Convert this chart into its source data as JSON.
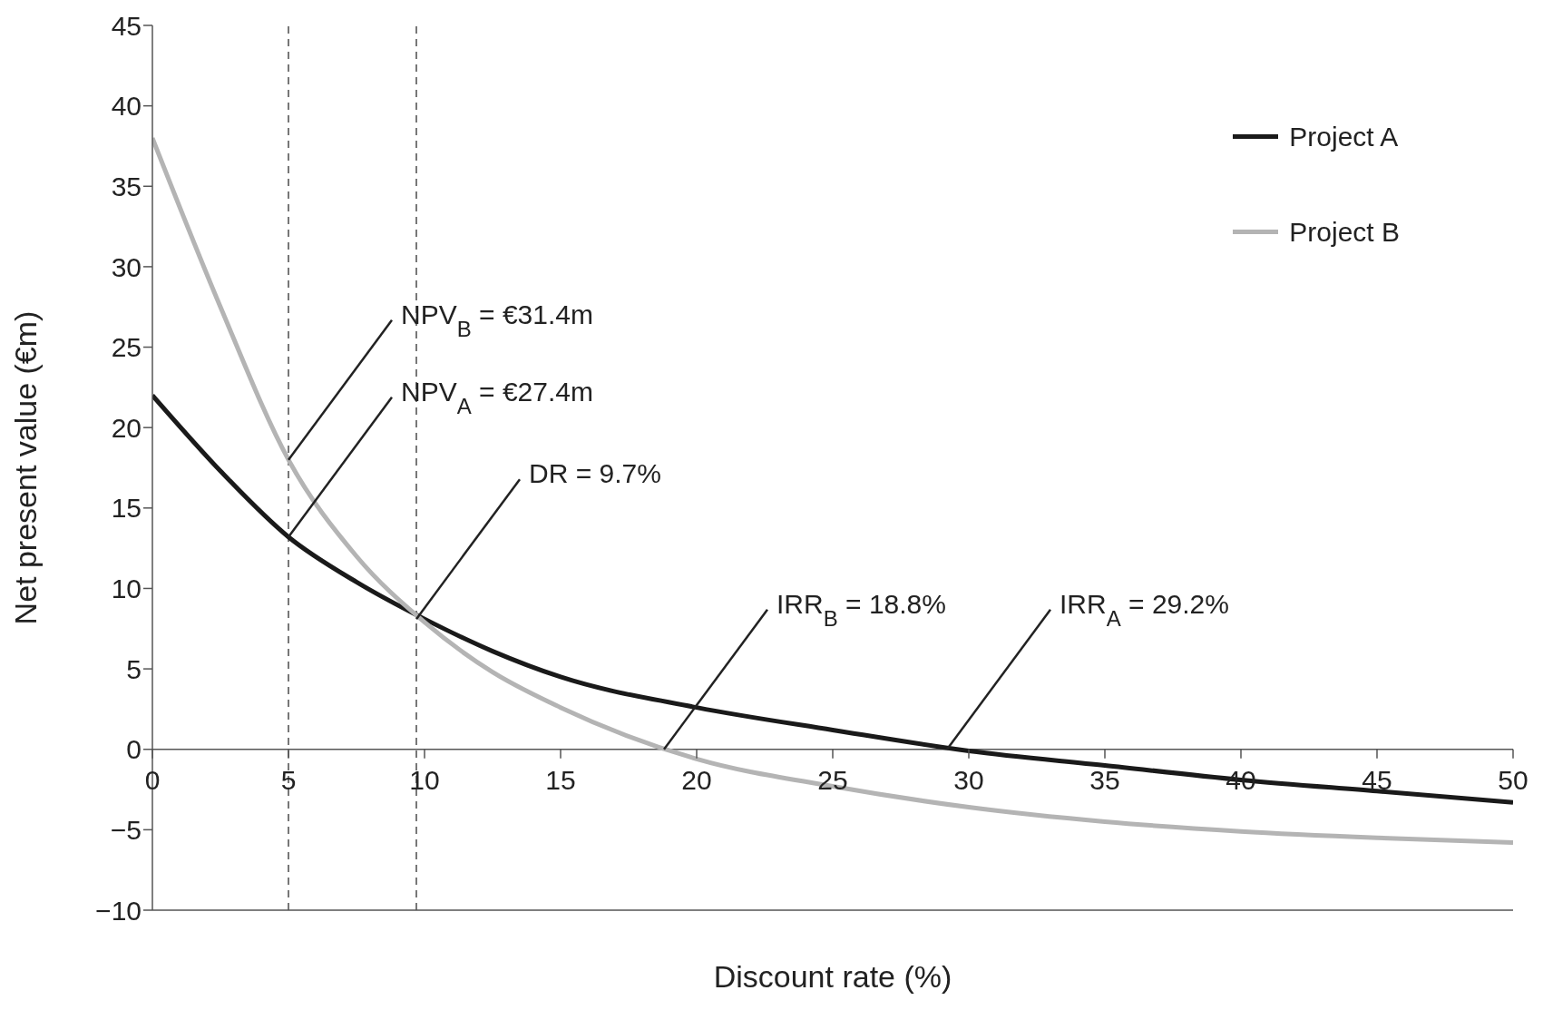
{
  "chart_data": {
    "type": "line",
    "xlabel": "Discount rate (%)",
    "ylabel": "Net present value (€m)",
    "x": [
      0,
      2.5,
      5,
      7.5,
      10,
      12.5,
      15,
      20,
      25,
      30,
      35,
      40,
      45,
      50
    ],
    "series": [
      {
        "name": "Project A",
        "color": "#1a1a1a",
        "values": [
          22,
          17.3,
          13.2,
          10.4,
          8.1,
          6.1,
          4.5,
          2.6,
          1.2,
          -0.1,
          -1.0,
          -1.9,
          -2.6,
          -3.3
        ]
      },
      {
        "name": "Project B",
        "color": "#b4b4b4",
        "values": [
          38,
          27.5,
          18,
          12,
          7.9,
          4.8,
          2.6,
          -0.6,
          -2.3,
          -3.6,
          -4.5,
          -5.1,
          -5.5,
          -5.8
        ]
      }
    ],
    "xlim": [
      0,
      50
    ],
    "xticks": [
      0,
      5,
      10,
      15,
      20,
      25,
      30,
      35,
      40,
      45,
      50
    ],
    "ylim": [
      -10,
      45
    ],
    "yticks": [
      {
        "value": -10,
        "label": "−10"
      },
      {
        "value": -5,
        "label": "−5"
      },
      0,
      5,
      10,
      15,
      20,
      25,
      30,
      35,
      40,
      45
    ],
    "ref_lines": [
      {
        "axis": "x",
        "value": 5,
        "color": "#777777",
        "line_style": "dashed"
      },
      {
        "axis": "x",
        "value": 9.7,
        "color": "#777777",
        "line_style": "dashed"
      }
    ],
    "annotations": [
      {
        "text": "NPV$_{B}$ = €31.4m",
        "x": 5,
        "y": 18
      },
      {
        "text": "NPV$_{A}$ = €27.4m",
        "x": 5,
        "y": 13.2
      },
      {
        "text": "DR = 9.7%",
        "x": 9.7,
        "y": 8.1
      },
      {
        "text": "IRR$_{B}$ = 18.8%",
        "x": 18.8,
        "y": 0
      },
      {
        "text": "IRR$_{A}$ = 29.2%",
        "x": 29.2,
        "y": 0
      }
    ],
    "legend": "top right",
    "marker": "none",
    "line_style": "solid"
  }
}
